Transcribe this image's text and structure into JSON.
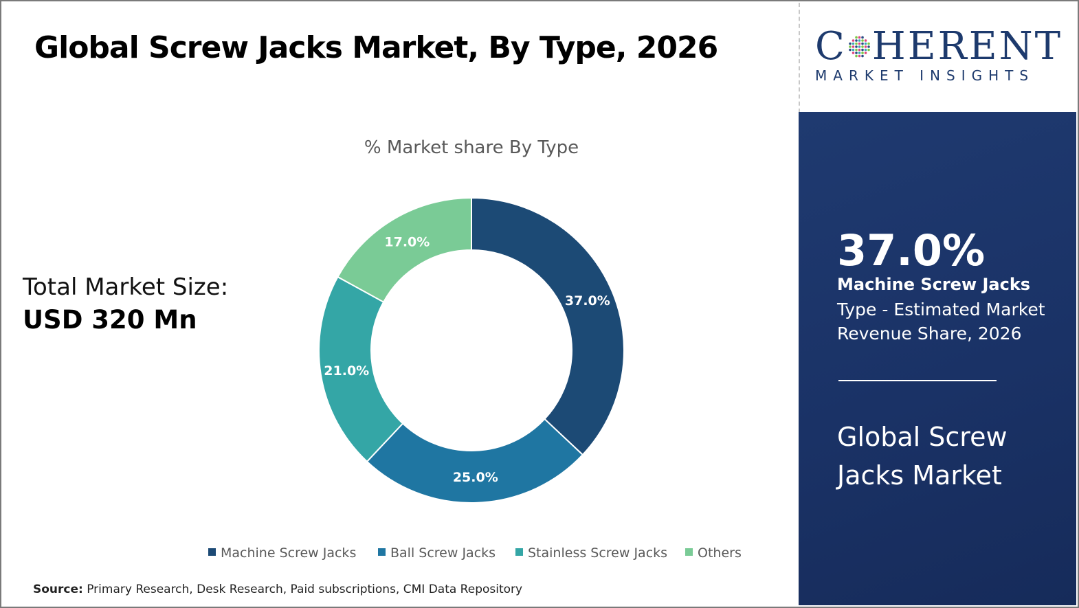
{
  "title": "Global Screw Jacks Market, By Type, 2026",
  "total_market": {
    "label": "Total Market Size:",
    "value": "USD 320 Mn"
  },
  "source": {
    "prefix": "Source:",
    "text": "Primary Research, Desk Research, Paid subscriptions, CMI Data Repository"
  },
  "logo": {
    "brand_pre": "C",
    "brand_post": "HERENT",
    "tagline": "MARKET INSIGHTS",
    "colors": [
      "#2a4a85",
      "#3aa8b0",
      "#7ac943",
      "#e0457b"
    ]
  },
  "highlight": {
    "percent": "37.0%",
    "segment": "Machine Screw Jacks",
    "description": "Type - Estimated Market Revenue Share, 2026",
    "market_name": "Global Screw Jacks Market"
  },
  "chart_data": {
    "type": "pie",
    "title": "% Market share By Type",
    "categories": [
      "Machine Screw Jacks",
      "Ball Screw Jacks",
      "Stainless Screw Jacks",
      "Others"
    ],
    "values": [
      37.0,
      25.0,
      21.0,
      17.0
    ],
    "labels": [
      "37.0%",
      "25.0%",
      "21.0%",
      "17.0%"
    ],
    "colors": [
      "#1c4a75",
      "#1f76a2",
      "#34a6a6",
      "#7acb96"
    ],
    "donut": true,
    "legend_position": "bottom"
  }
}
